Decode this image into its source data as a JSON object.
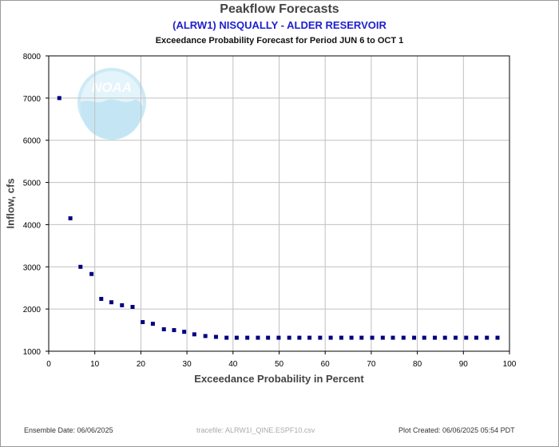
{
  "titles": {
    "main": "Peakflow Forecasts",
    "station": "(ALRW1) NISQUALLY - ALDER RESERVOIR",
    "subtitle": "Exceedance Probability Forecast for Period JUN 6 to OCT 1"
  },
  "footer": {
    "ensemble_date": "Ensemble Date: 06/06/2025",
    "tracefile": "tracefile: ALRW1I_QINE.ESPF10.csv",
    "plot_created": "Plot Created: 06/06/2025 05:54 PDT"
  },
  "watermark": {
    "text": "NOAA",
    "icon": "noaa-logo-icon"
  },
  "colors": {
    "marker": "#000080",
    "grid": "#c0c0c0",
    "station_title": "#2020cc",
    "watermark": "#b9e3f2"
  },
  "chart_data": {
    "type": "scatter",
    "title": "Peakflow Forecasts",
    "xlabel": "Exceedance Probability in Percent",
    "ylabel": "Inflow, cfs",
    "xlim": [
      0,
      100
    ],
    "ylim": [
      1000,
      8000
    ],
    "xticks": [
      0,
      10,
      20,
      30,
      40,
      50,
      60,
      70,
      80,
      90,
      100
    ],
    "yticks": [
      1000,
      2000,
      3000,
      4000,
      5000,
      6000,
      7000,
      8000
    ],
    "grid": true,
    "x": [
      2.3,
      4.7,
      6.9,
      9.3,
      11.4,
      13.6,
      15.9,
      18.2,
      20.4,
      22.6,
      25.0,
      27.2,
      29.4,
      31.6,
      34.0,
      36.3,
      38.6,
      40.8,
      43.1,
      45.4,
      47.6,
      49.9,
      52.2,
      54.4,
      56.6,
      58.9,
      61.2,
      63.5,
      65.7,
      67.9,
      70.2,
      72.5,
      74.7,
      77.0,
      79.3,
      81.5,
      83.8,
      86.0,
      88.3,
      90.6,
      92.8,
      95.1,
      97.4
    ],
    "y": [
      7000,
      4150,
      3000,
      2830,
      2240,
      2160,
      2090,
      2050,
      1690,
      1650,
      1520,
      1500,
      1460,
      1400,
      1360,
      1340,
      1320,
      1320,
      1320,
      1320,
      1320,
      1320,
      1320,
      1320,
      1320,
      1320,
      1320,
      1320,
      1320,
      1320,
      1320,
      1320,
      1320,
      1320,
      1320,
      1320,
      1320,
      1320,
      1320,
      1320,
      1320,
      1320,
      1320
    ]
  }
}
